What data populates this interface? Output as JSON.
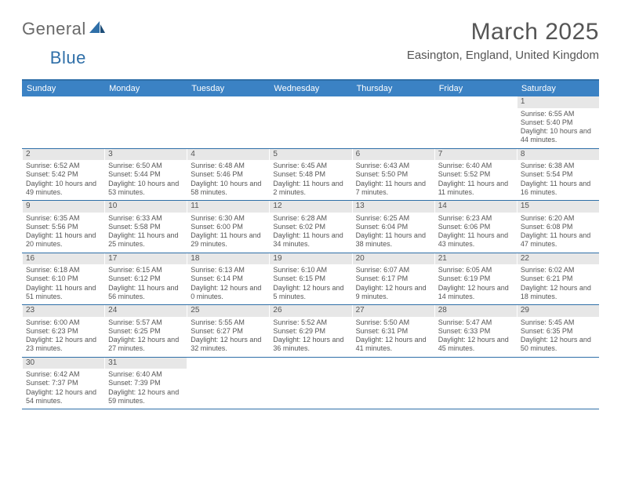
{
  "brand": {
    "part1": "General",
    "part2": "Blue"
  },
  "title": "March 2025",
  "location": "Easington, England, United Kingdom",
  "colors": {
    "header_bg": "#3b82c4",
    "border": "#2f6fa8",
    "daynum_bg": "#e7e7e7",
    "text": "#555555"
  },
  "day_names": [
    "Sunday",
    "Monday",
    "Tuesday",
    "Wednesday",
    "Thursday",
    "Friday",
    "Saturday"
  ],
  "weeks": [
    [
      {
        "n": "",
        "empty": true
      },
      {
        "n": "",
        "empty": true
      },
      {
        "n": "",
        "empty": true
      },
      {
        "n": "",
        "empty": true
      },
      {
        "n": "",
        "empty": true
      },
      {
        "n": "",
        "empty": true
      },
      {
        "n": "1",
        "sr": "Sunrise: 6:55 AM",
        "ss": "Sunset: 5:40 PM",
        "dl": "Daylight: 10 hours and 44 minutes."
      }
    ],
    [
      {
        "n": "2",
        "sr": "Sunrise: 6:52 AM",
        "ss": "Sunset: 5:42 PM",
        "dl": "Daylight: 10 hours and 49 minutes."
      },
      {
        "n": "3",
        "sr": "Sunrise: 6:50 AM",
        "ss": "Sunset: 5:44 PM",
        "dl": "Daylight: 10 hours and 53 minutes."
      },
      {
        "n": "4",
        "sr": "Sunrise: 6:48 AM",
        "ss": "Sunset: 5:46 PM",
        "dl": "Daylight: 10 hours and 58 minutes."
      },
      {
        "n": "5",
        "sr": "Sunrise: 6:45 AM",
        "ss": "Sunset: 5:48 PM",
        "dl": "Daylight: 11 hours and 2 minutes."
      },
      {
        "n": "6",
        "sr": "Sunrise: 6:43 AM",
        "ss": "Sunset: 5:50 PM",
        "dl": "Daylight: 11 hours and 7 minutes."
      },
      {
        "n": "7",
        "sr": "Sunrise: 6:40 AM",
        "ss": "Sunset: 5:52 PM",
        "dl": "Daylight: 11 hours and 11 minutes."
      },
      {
        "n": "8",
        "sr": "Sunrise: 6:38 AM",
        "ss": "Sunset: 5:54 PM",
        "dl": "Daylight: 11 hours and 16 minutes."
      }
    ],
    [
      {
        "n": "9",
        "sr": "Sunrise: 6:35 AM",
        "ss": "Sunset: 5:56 PM",
        "dl": "Daylight: 11 hours and 20 minutes."
      },
      {
        "n": "10",
        "sr": "Sunrise: 6:33 AM",
        "ss": "Sunset: 5:58 PM",
        "dl": "Daylight: 11 hours and 25 minutes."
      },
      {
        "n": "11",
        "sr": "Sunrise: 6:30 AM",
        "ss": "Sunset: 6:00 PM",
        "dl": "Daylight: 11 hours and 29 minutes."
      },
      {
        "n": "12",
        "sr": "Sunrise: 6:28 AM",
        "ss": "Sunset: 6:02 PM",
        "dl": "Daylight: 11 hours and 34 minutes."
      },
      {
        "n": "13",
        "sr": "Sunrise: 6:25 AM",
        "ss": "Sunset: 6:04 PM",
        "dl": "Daylight: 11 hours and 38 minutes."
      },
      {
        "n": "14",
        "sr": "Sunrise: 6:23 AM",
        "ss": "Sunset: 6:06 PM",
        "dl": "Daylight: 11 hours and 43 minutes."
      },
      {
        "n": "15",
        "sr": "Sunrise: 6:20 AM",
        "ss": "Sunset: 6:08 PM",
        "dl": "Daylight: 11 hours and 47 minutes."
      }
    ],
    [
      {
        "n": "16",
        "sr": "Sunrise: 6:18 AM",
        "ss": "Sunset: 6:10 PM",
        "dl": "Daylight: 11 hours and 51 minutes."
      },
      {
        "n": "17",
        "sr": "Sunrise: 6:15 AM",
        "ss": "Sunset: 6:12 PM",
        "dl": "Daylight: 11 hours and 56 minutes."
      },
      {
        "n": "18",
        "sr": "Sunrise: 6:13 AM",
        "ss": "Sunset: 6:14 PM",
        "dl": "Daylight: 12 hours and 0 minutes."
      },
      {
        "n": "19",
        "sr": "Sunrise: 6:10 AM",
        "ss": "Sunset: 6:15 PM",
        "dl": "Daylight: 12 hours and 5 minutes."
      },
      {
        "n": "20",
        "sr": "Sunrise: 6:07 AM",
        "ss": "Sunset: 6:17 PM",
        "dl": "Daylight: 12 hours and 9 minutes."
      },
      {
        "n": "21",
        "sr": "Sunrise: 6:05 AM",
        "ss": "Sunset: 6:19 PM",
        "dl": "Daylight: 12 hours and 14 minutes."
      },
      {
        "n": "22",
        "sr": "Sunrise: 6:02 AM",
        "ss": "Sunset: 6:21 PM",
        "dl": "Daylight: 12 hours and 18 minutes."
      }
    ],
    [
      {
        "n": "23",
        "sr": "Sunrise: 6:00 AM",
        "ss": "Sunset: 6:23 PM",
        "dl": "Daylight: 12 hours and 23 minutes."
      },
      {
        "n": "24",
        "sr": "Sunrise: 5:57 AM",
        "ss": "Sunset: 6:25 PM",
        "dl": "Daylight: 12 hours and 27 minutes."
      },
      {
        "n": "25",
        "sr": "Sunrise: 5:55 AM",
        "ss": "Sunset: 6:27 PM",
        "dl": "Daylight: 12 hours and 32 minutes."
      },
      {
        "n": "26",
        "sr": "Sunrise: 5:52 AM",
        "ss": "Sunset: 6:29 PM",
        "dl": "Daylight: 12 hours and 36 minutes."
      },
      {
        "n": "27",
        "sr": "Sunrise: 5:50 AM",
        "ss": "Sunset: 6:31 PM",
        "dl": "Daylight: 12 hours and 41 minutes."
      },
      {
        "n": "28",
        "sr": "Sunrise: 5:47 AM",
        "ss": "Sunset: 6:33 PM",
        "dl": "Daylight: 12 hours and 45 minutes."
      },
      {
        "n": "29",
        "sr": "Sunrise: 5:45 AM",
        "ss": "Sunset: 6:35 PM",
        "dl": "Daylight: 12 hours and 50 minutes."
      }
    ],
    [
      {
        "n": "30",
        "sr": "Sunrise: 6:42 AM",
        "ss": "Sunset: 7:37 PM",
        "dl": "Daylight: 12 hours and 54 minutes."
      },
      {
        "n": "31",
        "sr": "Sunrise: 6:40 AM",
        "ss": "Sunset: 7:39 PM",
        "dl": "Daylight: 12 hours and 59 minutes."
      },
      {
        "n": "",
        "empty": true
      },
      {
        "n": "",
        "empty": true
      },
      {
        "n": "",
        "empty": true
      },
      {
        "n": "",
        "empty": true
      },
      {
        "n": "",
        "empty": true
      }
    ]
  ]
}
